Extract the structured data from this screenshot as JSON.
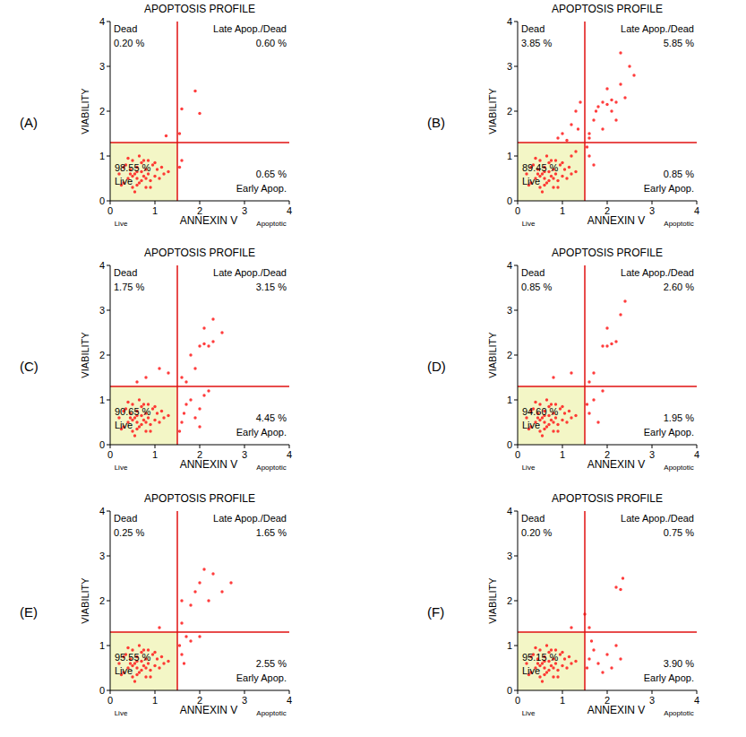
{
  "chart_data": [
    {
      "type": "scatter",
      "panel_label": "(A)",
      "title": "APOPTOSIS PROFILE",
      "x_label": "ANNEXIN V",
      "y_label": "VIABILITY",
      "x_end_labels": [
        "Live",
        "Apoptotic"
      ],
      "xlim": [
        0,
        4
      ],
      "ylim": [
        0,
        4
      ],
      "xticks": [
        0,
        1,
        2,
        3,
        4
      ],
      "yticks": [
        0,
        1,
        2,
        3,
        4
      ],
      "x_threshold": 1.5,
      "y_threshold": 1.3,
      "color": "#ff1a1a",
      "quadrants": [
        {
          "name": "Dead",
          "value": 0.2,
          "value_label": "0.20 %"
        },
        {
          "name": "Late Apop./Dead",
          "value": 0.6,
          "value_label": "0.60 %"
        },
        {
          "name": "Early Apop.",
          "value": 0.65,
          "value_label": "0.65 %"
        },
        {
          "name": "Live",
          "value": 98.55,
          "value_label": "98.55 %"
        }
      ],
      "x": [
        0.2,
        0.3,
        0.35,
        0.4,
        0.45,
        0.5,
        0.5,
        0.55,
        0.6,
        0.6,
        0.65,
        0.7,
        0.7,
        0.75,
        0.8,
        0.8,
        0.85,
        0.9,
        0.95,
        1.0,
        1.05,
        1.1,
        1.2,
        1.3,
        0.25,
        0.4,
        0.55,
        0.65,
        0.75,
        0.9,
        1.0,
        0.3,
        0.5,
        0.6,
        0.7,
        0.85,
        0.45,
        0.6,
        0.8,
        1.15,
        1.55,
        1.6,
        1.25,
        1.55,
        1.6,
        1.9,
        2.0
      ],
      "values": [
        0.6,
        0.4,
        0.8,
        0.5,
        0.7,
        0.3,
        0.9,
        0.6,
        0.5,
        0.75,
        0.4,
        0.65,
        0.85,
        0.55,
        0.3,
        0.7,
        0.6,
        0.45,
        0.8,
        0.55,
        0.7,
        0.5,
        0.6,
        0.65,
        0.35,
        0.95,
        0.2,
        1.0,
        0.9,
        0.3,
        0.85,
        0.75,
        0.55,
        0.65,
        0.45,
        0.9,
        0.6,
        0.35,
        0.5,
        0.75,
        0.75,
        0.9,
        1.45,
        1.5,
        2.05,
        2.45,
        1.95
      ]
    },
    {
      "type": "scatter",
      "panel_label": "(B)",
      "title": "APOPTOSIS PROFILE",
      "x_label": "ANNEXIN V",
      "y_label": "VIABILITY",
      "x_end_labels": [
        "Live",
        "Apoptotic"
      ],
      "xlim": [
        0,
        4
      ],
      "ylim": [
        0,
        4
      ],
      "xticks": [
        0,
        1,
        2,
        3,
        4
      ],
      "yticks": [
        0,
        1,
        2,
        3,
        4
      ],
      "x_threshold": 1.5,
      "y_threshold": 1.3,
      "color": "#ff1a1a",
      "quadrants": [
        {
          "name": "Dead",
          "value": 3.85,
          "value_label": "3.85 %"
        },
        {
          "name": "Late Apop./Dead",
          "value": 5.85,
          "value_label": "5.85 %"
        },
        {
          "name": "Early Apop.",
          "value": 0.85,
          "value_label": "0.85 %"
        },
        {
          "name": "Live",
          "value": 89.45,
          "value_label": "89.45 %"
        }
      ],
      "x": [
        0.2,
        0.3,
        0.35,
        0.4,
        0.45,
        0.5,
        0.5,
        0.55,
        0.6,
        0.6,
        0.65,
        0.7,
        0.7,
        0.75,
        0.8,
        0.8,
        0.85,
        0.9,
        0.95,
        1.0,
        1.05,
        1.1,
        1.2,
        1.3,
        0.25,
        0.4,
        0.55,
        0.65,
        0.75,
        0.9,
        1.0,
        0.3,
        0.5,
        0.6,
        0.7,
        0.85,
        0.45,
        0.6,
        0.8,
        1.15,
        1.6,
        1.7,
        1.8,
        1.9,
        2.0,
        2.1,
        2.2,
        2.0,
        2.3,
        2.5,
        2.3,
        1.75,
        2.2,
        1.6,
        2.6,
        1.9,
        2.1,
        2.4,
        1.0,
        1.2,
        1.3,
        0.9,
        1.4,
        1.1,
        1.35,
        1.6,
        1.7,
        1.55,
        1.3,
        1.2
      ],
      "values": [
        0.6,
        0.4,
        0.8,
        0.5,
        0.7,
        0.3,
        0.9,
        0.6,
        0.5,
        0.75,
        0.4,
        0.65,
        0.85,
        0.55,
        0.3,
        0.7,
        0.6,
        0.45,
        0.8,
        0.55,
        0.7,
        0.5,
        0.6,
        0.65,
        0.35,
        0.95,
        0.2,
        1.0,
        0.9,
        0.3,
        0.85,
        0.75,
        0.55,
        0.65,
        0.45,
        0.9,
        0.6,
        0.35,
        0.5,
        0.75,
        1.5,
        1.8,
        2.1,
        2.2,
        2.15,
        2.25,
        2.2,
        2.5,
        2.6,
        3.0,
        3.3,
        2.0,
        1.8,
        1.4,
        2.8,
        1.6,
        2.0,
        2.3,
        1.5,
        1.7,
        2.0,
        1.4,
        2.2,
        1.35,
        1.6,
        1.0,
        0.8,
        1.2,
        1.1,
        1.0
      ]
    },
    {
      "type": "scatter",
      "panel_label": "(C)",
      "title": "APOPTOSIS PROFILE",
      "x_label": "ANNEXIN V",
      "y_label": "VIABILITY",
      "x_end_labels": [
        "Live",
        "Apoptotic"
      ],
      "xlim": [
        0,
        4
      ],
      "ylim": [
        0,
        4
      ],
      "xticks": [
        0,
        1,
        2,
        3,
        4
      ],
      "yticks": [
        0,
        1,
        2,
        3,
        4
      ],
      "x_threshold": 1.5,
      "y_threshold": 1.3,
      "color": "#ff1a1a",
      "quadrants": [
        {
          "name": "Dead",
          "value": 1.75,
          "value_label": "1.75 %"
        },
        {
          "name": "Late Apop./Dead",
          "value": 3.15,
          "value_label": "3.15 %"
        },
        {
          "name": "Early Apop.",
          "value": 4.45,
          "value_label": "4.45 %"
        },
        {
          "name": "Live",
          "value": 90.65,
          "value_label": "90.65 %"
        }
      ],
      "x": [
        0.2,
        0.3,
        0.35,
        0.4,
        0.45,
        0.5,
        0.5,
        0.55,
        0.6,
        0.6,
        0.65,
        0.7,
        0.7,
        0.75,
        0.8,
        0.8,
        0.85,
        0.9,
        0.95,
        1.0,
        1.05,
        1.1,
        1.2,
        1.3,
        0.25,
        0.4,
        0.55,
        0.65,
        0.75,
        0.9,
        1.0,
        0.3,
        0.5,
        0.6,
        0.7,
        0.85,
        0.45,
        0.6,
        0.8,
        1.15,
        1.6,
        1.8,
        2.0,
        2.1,
        2.2,
        2.3,
        2.1,
        2.3,
        1.9,
        2.5,
        1.7,
        0.8,
        1.1,
        1.3,
        0.6,
        1.6,
        1.7,
        1.8,
        2.0,
        2.1,
        1.55,
        1.9,
        2.2,
        1.65,
        2.0
      ],
      "values": [
        0.6,
        0.4,
        0.8,
        0.5,
        0.7,
        0.3,
        0.9,
        0.6,
        0.5,
        0.75,
        0.4,
        0.65,
        0.85,
        0.55,
        0.3,
        0.7,
        0.6,
        0.45,
        0.8,
        0.55,
        0.7,
        0.5,
        0.6,
        0.65,
        0.35,
        0.95,
        0.2,
        1.0,
        0.9,
        0.3,
        0.85,
        0.75,
        0.55,
        0.65,
        0.45,
        0.9,
        0.6,
        0.35,
        0.5,
        0.75,
        1.5,
        2.0,
        2.2,
        2.25,
        2.2,
        2.3,
        2.6,
        2.8,
        1.7,
        2.5,
        1.4,
        1.5,
        1.7,
        1.6,
        1.4,
        0.5,
        0.9,
        1.0,
        0.8,
        1.1,
        0.3,
        0.6,
        1.2,
        0.7,
        0.4
      ]
    },
    {
      "type": "scatter",
      "panel_label": "(D)",
      "title": "APOPTOSIS PROFILE",
      "x_label": "ANNEXIN V",
      "y_label": "VIABILITY",
      "x_end_labels": [
        "Live",
        "Apoptotic"
      ],
      "xlim": [
        0,
        4
      ],
      "ylim": [
        0,
        4
      ],
      "xticks": [
        0,
        1,
        2,
        3,
        4
      ],
      "yticks": [
        0,
        1,
        2,
        3,
        4
      ],
      "x_threshold": 1.5,
      "y_threshold": 1.3,
      "color": "#ff1a1a",
      "quadrants": [
        {
          "name": "Dead",
          "value": 0.85,
          "value_label": "0.85 %"
        },
        {
          "name": "Late Apop./Dead",
          "value": 2.6,
          "value_label": "2.60 %"
        },
        {
          "name": "Early Apop.",
          "value": 1.95,
          "value_label": "1.95 %"
        },
        {
          "name": "Live",
          "value": 94.6,
          "value_label": "94.60 %"
        }
      ],
      "x": [
        0.2,
        0.3,
        0.35,
        0.4,
        0.45,
        0.5,
        0.5,
        0.55,
        0.6,
        0.6,
        0.65,
        0.7,
        0.7,
        0.75,
        0.8,
        0.8,
        0.85,
        0.9,
        0.95,
        1.0,
        1.05,
        1.1,
        1.2,
        1.3,
        0.25,
        0.4,
        0.55,
        0.65,
        0.75,
        0.9,
        1.0,
        0.3,
        0.5,
        0.6,
        0.7,
        0.85,
        0.45,
        0.6,
        0.8,
        1.15,
        1.7,
        1.9,
        2.0,
        2.1,
        2.2,
        2.3,
        2.4,
        1.6,
        2.0,
        0.8,
        1.2,
        1.6,
        1.7,
        1.8,
        1.9,
        1.55
      ],
      "values": [
        0.6,
        0.4,
        0.8,
        0.5,
        0.7,
        0.3,
        0.9,
        0.6,
        0.5,
        0.75,
        0.4,
        0.65,
        0.85,
        0.55,
        0.3,
        0.7,
        0.6,
        0.45,
        0.8,
        0.55,
        0.7,
        0.5,
        0.6,
        0.65,
        0.35,
        0.95,
        0.2,
        1.0,
        0.9,
        0.3,
        0.85,
        0.75,
        0.55,
        0.65,
        0.45,
        0.9,
        0.6,
        0.35,
        0.5,
        0.75,
        1.6,
        2.2,
        2.2,
        2.25,
        2.3,
        2.9,
        3.2,
        1.4,
        2.6,
        1.5,
        1.6,
        0.7,
        1.0,
        0.5,
        1.2,
        0.9
      ]
    },
    {
      "type": "scatter",
      "panel_label": "(E)",
      "title": "APOPTOSIS PROFILE",
      "x_label": "ANNEXIN V",
      "y_label": "VIABILITY",
      "x_end_labels": [
        "Live",
        "Apoptotic"
      ],
      "xlim": [
        0,
        4
      ],
      "ylim": [
        0,
        4
      ],
      "xticks": [
        0,
        1,
        2,
        3,
        4
      ],
      "yticks": [
        0,
        1,
        2,
        3,
        4
      ],
      "x_threshold": 1.5,
      "y_threshold": 1.3,
      "color": "#ff1a1a",
      "quadrants": [
        {
          "name": "Dead",
          "value": 0.25,
          "value_label": "0.25 %"
        },
        {
          "name": "Late Apop./Dead",
          "value": 1.65,
          "value_label": "1.65 %"
        },
        {
          "name": "Early Apop.",
          "value": 2.55,
          "value_label": "2.55 %"
        },
        {
          "name": "Live",
          "value": 95.55,
          "value_label": "95.55 %"
        }
      ],
      "x": [
        0.2,
        0.3,
        0.35,
        0.4,
        0.45,
        0.5,
        0.5,
        0.55,
        0.6,
        0.6,
        0.65,
        0.7,
        0.7,
        0.75,
        0.8,
        0.8,
        0.85,
        0.9,
        0.95,
        1.0,
        1.05,
        1.1,
        1.2,
        1.3,
        0.25,
        0.4,
        0.55,
        0.65,
        0.75,
        0.9,
        1.0,
        0.3,
        0.5,
        0.6,
        0.7,
        0.85,
        0.45,
        0.6,
        0.8,
        1.15,
        1.6,
        1.8,
        2.0,
        2.1,
        2.3,
        2.5,
        2.2,
        1.9,
        2.7,
        1.6,
        1.1,
        1.55,
        1.6,
        1.7,
        1.8,
        1.65,
        2.0
      ],
      "values": [
        0.6,
        0.4,
        0.8,
        0.5,
        0.7,
        0.3,
        0.9,
        0.6,
        0.5,
        0.75,
        0.4,
        0.65,
        0.85,
        0.55,
        0.3,
        0.7,
        0.6,
        0.45,
        0.8,
        0.55,
        0.7,
        0.5,
        0.6,
        0.65,
        0.35,
        0.95,
        0.2,
        1.0,
        0.9,
        0.3,
        0.85,
        0.75,
        0.55,
        0.65,
        0.45,
        0.9,
        0.6,
        0.35,
        0.5,
        0.75,
        1.5,
        1.9,
        2.4,
        2.7,
        2.6,
        2.2,
        2.0,
        2.2,
        2.4,
        2.0,
        1.4,
        1.0,
        0.8,
        1.2,
        1.1,
        0.6,
        1.2
      ]
    },
    {
      "type": "scatter",
      "panel_label": "(F)",
      "title": "APOPTOSIS PROFILE",
      "x_label": "ANNEXIN V",
      "y_label": "VIABILITY",
      "x_end_labels": [
        "Live",
        "Apoptotic"
      ],
      "xlim": [
        0,
        4
      ],
      "ylim": [
        0,
        4
      ],
      "xticks": [
        0,
        1,
        2,
        3,
        4
      ],
      "yticks": [
        0,
        1,
        2,
        3,
        4
      ],
      "x_threshold": 1.5,
      "y_threshold": 1.3,
      "color": "#ff1a1a",
      "quadrants": [
        {
          "name": "Dead",
          "value": 0.2,
          "value_label": "0.20 %"
        },
        {
          "name": "Late Apop./Dead",
          "value": 0.75,
          "value_label": "0.75 %"
        },
        {
          "name": "Early Apop.",
          "value": 3.9,
          "value_label": "3.90 %"
        },
        {
          "name": "Live",
          "value": 95.15,
          "value_label": "95.15 %"
        }
      ],
      "x": [
        0.2,
        0.3,
        0.35,
        0.4,
        0.45,
        0.5,
        0.5,
        0.55,
        0.6,
        0.6,
        0.65,
        0.7,
        0.7,
        0.75,
        0.8,
        0.8,
        0.85,
        0.9,
        0.95,
        1.0,
        1.05,
        1.1,
        1.2,
        1.3,
        0.25,
        0.4,
        0.55,
        0.65,
        0.75,
        0.9,
        1.0,
        0.3,
        0.5,
        0.6,
        0.7,
        0.85,
        0.45,
        0.6,
        0.8,
        1.15,
        2.2,
        2.3,
        2.35,
        1.6,
        1.5,
        1.2,
        1.6,
        1.7,
        1.8,
        2.0,
        2.1,
        1.65,
        1.9,
        2.3,
        1.55,
        2.2
      ],
      "values": [
        0.6,
        0.4,
        0.8,
        0.5,
        0.7,
        0.3,
        0.9,
        0.6,
        0.5,
        0.75,
        0.4,
        0.65,
        0.85,
        0.55,
        0.3,
        0.7,
        0.6,
        0.45,
        0.8,
        0.55,
        0.7,
        0.5,
        0.6,
        0.65,
        0.35,
        0.95,
        0.2,
        1.0,
        0.9,
        0.3,
        0.85,
        0.75,
        0.55,
        0.65,
        0.45,
        0.9,
        0.6,
        0.35,
        0.5,
        0.75,
        2.3,
        2.25,
        2.5,
        1.4,
        1.7,
        1.4,
        0.7,
        0.9,
        0.6,
        0.8,
        0.5,
        1.1,
        0.4,
        0.7,
        0.5,
        1.0
      ]
    }
  ]
}
